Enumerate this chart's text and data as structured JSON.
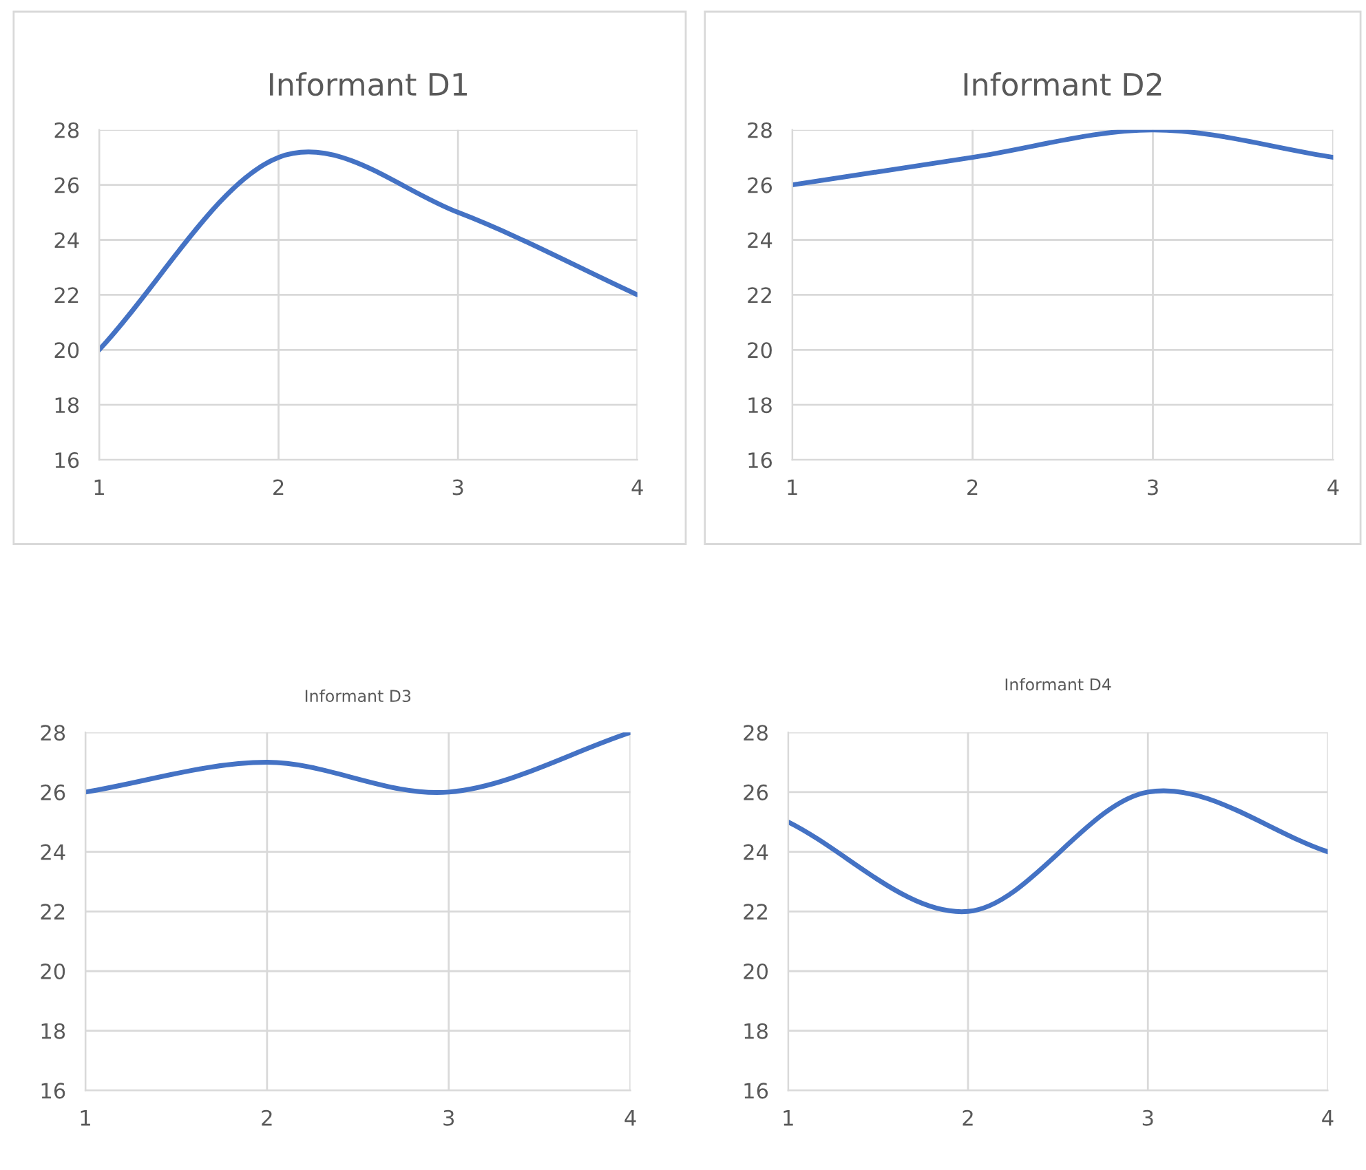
{
  "chart_data": [
    {
      "type": "line",
      "title": "Informant D1",
      "x": [
        1,
        2,
        3,
        4
      ],
      "series": [
        {
          "color": "#4472c4",
          "values": [
            20,
            27,
            25,
            22
          ]
        }
      ],
      "xlim": [
        1,
        4
      ],
      "xticks": [
        1,
        2,
        3,
        4
      ],
      "ylim": [
        16,
        28
      ],
      "yticks": [
        16,
        18,
        20,
        22,
        24,
        26,
        28
      ],
      "grid": true,
      "legend": false,
      "marker": "none",
      "line_style": "solid"
    },
    {
      "type": "line",
      "title": "Informant D2",
      "x": [
        1,
        2,
        3,
        4
      ],
      "series": [
        {
          "color": "#4472c4",
          "values": [
            26,
            27,
            28,
            27
          ]
        }
      ],
      "xlim": [
        1,
        4
      ],
      "xticks": [
        1,
        2,
        3,
        4
      ],
      "ylim": [
        16,
        28
      ],
      "yticks": [
        16,
        18,
        20,
        22,
        24,
        26,
        28
      ],
      "grid": true,
      "legend": false,
      "marker": "none",
      "line_style": "solid"
    },
    {
      "type": "line",
      "title": "Informant D3",
      "x": [
        1,
        2,
        3,
        4
      ],
      "series": [
        {
          "color": "#4472c4",
          "values": [
            26,
            27,
            26,
            28
          ]
        }
      ],
      "xlim": [
        1,
        4
      ],
      "xticks": [
        1,
        2,
        3,
        4
      ],
      "ylim": [
        16,
        28
      ],
      "yticks": [
        16,
        18,
        20,
        22,
        24,
        26,
        28
      ],
      "grid": true,
      "legend": false,
      "marker": "none",
      "line_style": "solid"
    },
    {
      "type": "line",
      "title": "Informant D4",
      "x": [
        1,
        2,
        3,
        4
      ],
      "series": [
        {
          "color": "#4472c4",
          "values": [
            25,
            22,
            26,
            24
          ]
        }
      ],
      "xlim": [
        1,
        4
      ],
      "xticks": [
        1,
        2,
        3,
        4
      ],
      "ylim": [
        16,
        28
      ],
      "yticks": [
        16,
        18,
        20,
        22,
        24,
        26,
        28
      ],
      "grid": true,
      "legend": false,
      "marker": "none",
      "line_style": "solid"
    }
  ]
}
